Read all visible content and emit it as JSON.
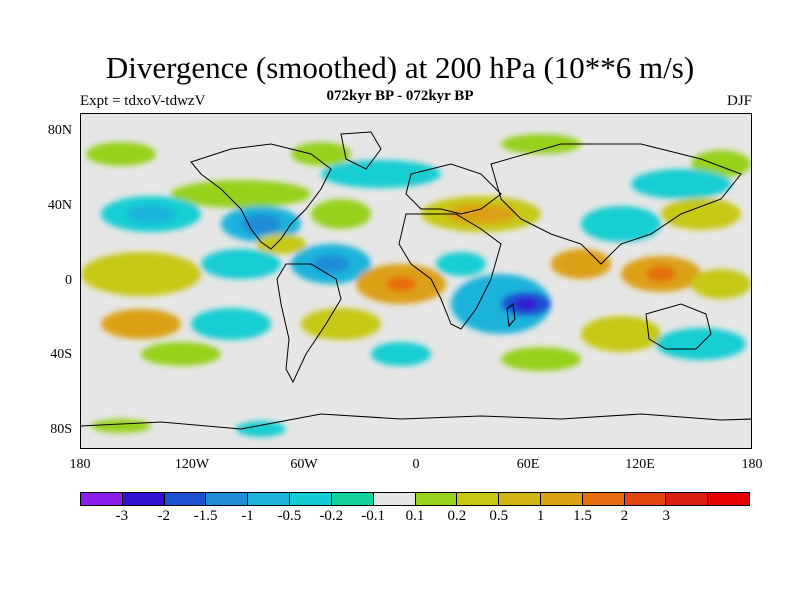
{
  "title": "Divergence (smoothed) at 200 hPa (10**6 m/s)",
  "subtitle": "072kyr BP - 072kyr BP",
  "experiment": "Expt = tdxoV-tdwzV",
  "season": "DJF",
  "lat_labels": [
    "80N",
    "40N",
    "0",
    "40S",
    "80S"
  ],
  "lon_labels": [
    "180",
    "120W",
    "60W",
    "0",
    "60E",
    "120E",
    "180"
  ],
  "colorbar": {
    "colors": [
      "#8c1eeb",
      "#3212d2",
      "#1e50d2",
      "#1e8cd7",
      "#1eb4dc",
      "#14cdd2",
      "#14d29b",
      "#e6e6e6",
      "#96d21e",
      "#c8c814",
      "#d2b414",
      "#dca014",
      "#e66e0f",
      "#e1460f",
      "#dc1e14",
      "#e60000"
    ],
    "labels": [
      "-3",
      "-2",
      "-1.5",
      "-1",
      "-0.5",
      "-0.2",
      "-0.1",
      "0.1",
      "0.2",
      "0.5",
      "1",
      "1.5",
      "2",
      "3"
    ]
  },
  "map_data": {
    "type": "filled-contour-map",
    "projection": "cylindrical-equidistant",
    "lon_range": [
      -180,
      180
    ],
    "lat_range": [
      -90,
      90
    ],
    "note_colors": "positive = yellow/orange/red, negative = cyan/blue"
  }
}
